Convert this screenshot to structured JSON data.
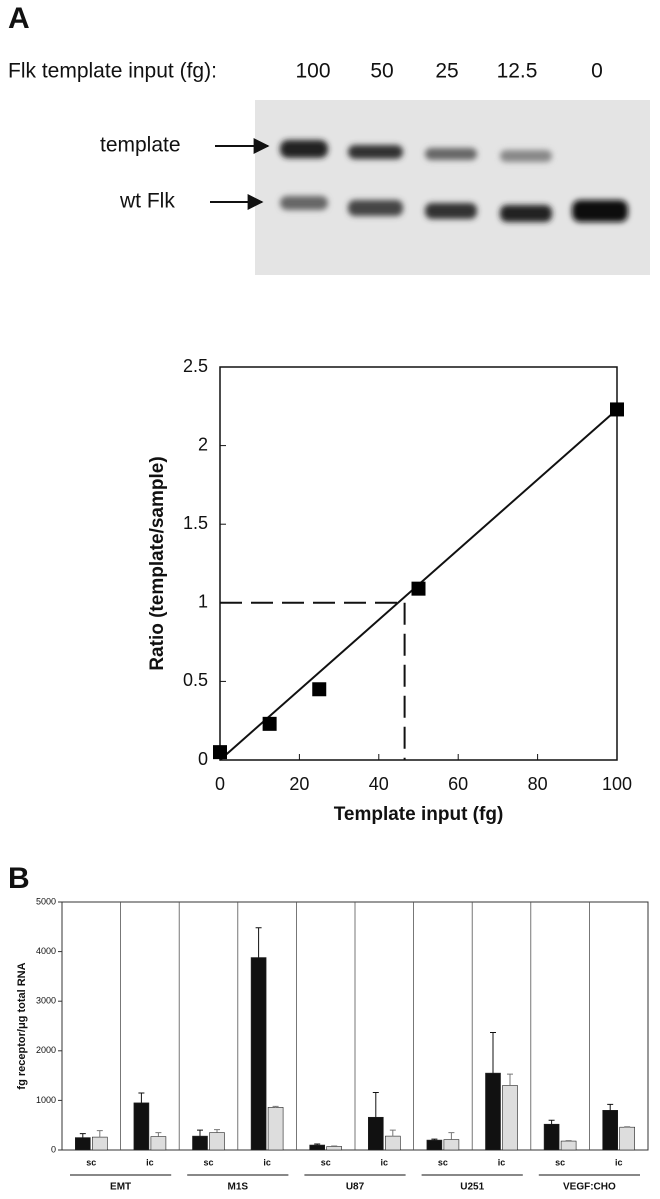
{
  "panels": [
    "A",
    "B"
  ],
  "gel": {
    "title": "Flk template input (fg):",
    "lanes": [
      "100",
      "50",
      "25",
      "12.5",
      "0"
    ],
    "bands": [
      "template",
      "wt Flk"
    ]
  },
  "chart_data": [
    {
      "type": "scatter",
      "xlabel": "Template input (fg)",
      "ylabel": "Ratio (template/sample)",
      "xlim": [
        0,
        100
      ],
      "ylim": [
        0,
        2.5
      ],
      "xticks": [
        0,
        20,
        40,
        60,
        80,
        100
      ],
      "yticks": [
        0,
        0.5,
        1,
        1.5,
        2,
        2.5
      ],
      "series": [
        {
          "color": "#000000",
          "x": [
            0,
            12.5,
            25,
            50,
            100
          ],
          "values": [
            0.05,
            0.23,
            0.45,
            1.09,
            2.23
          ]
        }
      ],
      "fit": {
        "x": [
          0,
          100
        ],
        "values": [
          0,
          2.23
        ]
      },
      "guide": {
        "x": 46.5,
        "y": 1
      }
    },
    {
      "type": "bar",
      "ylabel": "fg receptor/μg total RNA",
      "ylim": [
        0,
        5000
      ],
      "yticks": [
        0,
        1000,
        2000,
        3000,
        4000,
        5000
      ],
      "categories": [
        "sc",
        "ic",
        "sc",
        "ic",
        "sc",
        "ic",
        "sc",
        "ic",
        "sc",
        "ic"
      ],
      "groups": [
        "EMT",
        "M1S",
        "U87",
        "U251",
        "VEGF:CHO"
      ],
      "series": [
        {
          "color": "#111111",
          "values": [
            250,
            950,
            280,
            3880,
            100,
            660,
            200,
            1550,
            520,
            800
          ],
          "errors": [
            80,
            200,
            120,
            600,
            20,
            500,
            20,
            820,
            80,
            120
          ]
        },
        {
          "color": "#dddddd",
          "values": [
            260,
            270,
            350,
            860,
            70,
            280,
            210,
            1300,
            180,
            460
          ],
          "errors": [
            130,
            80,
            60,
            20,
            10,
            120,
            140,
            230,
            10,
            10
          ]
        }
      ]
    }
  ]
}
